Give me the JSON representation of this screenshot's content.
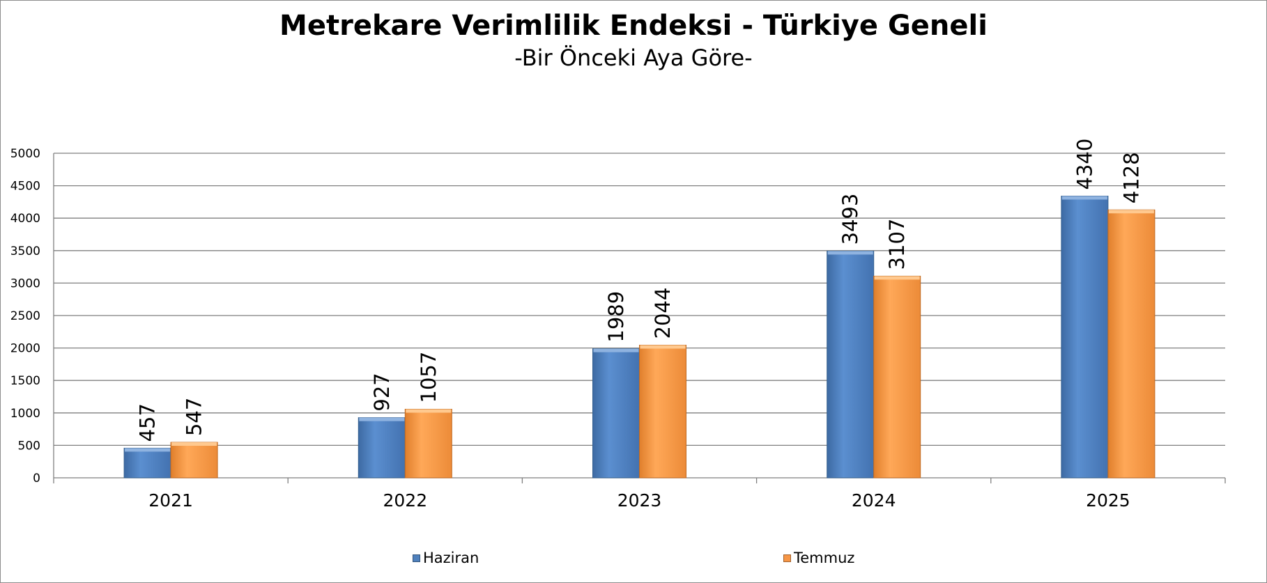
{
  "chart_data": {
    "type": "bar",
    "title": "Metrekare Verimlilik Endeksi - Türkiye Geneli",
    "subtitle": "-Bir Önceki Aya Göre-",
    "categories": [
      "2021",
      "2022",
      "2023",
      "2024",
      "2025"
    ],
    "series": [
      {
        "name": "Haziran",
        "values": [
          457,
          927,
          1989,
          3493,
          4340
        ],
        "color": "#4f81bd"
      },
      {
        "name": "Temmuz",
        "values": [
          547,
          1057,
          2044,
          3107,
          4128
        ],
        "color": "#f79646"
      }
    ],
    "ylim": [
      0,
      5000
    ],
    "yticks": [
      "0",
      "500",
      "1000",
      "1500",
      "2000",
      "2500",
      "3000",
      "3500",
      "4000",
      "4500",
      "5000"
    ],
    "xlabel": "",
    "ylabel": "",
    "grid": true,
    "legend_position": "bottom"
  }
}
